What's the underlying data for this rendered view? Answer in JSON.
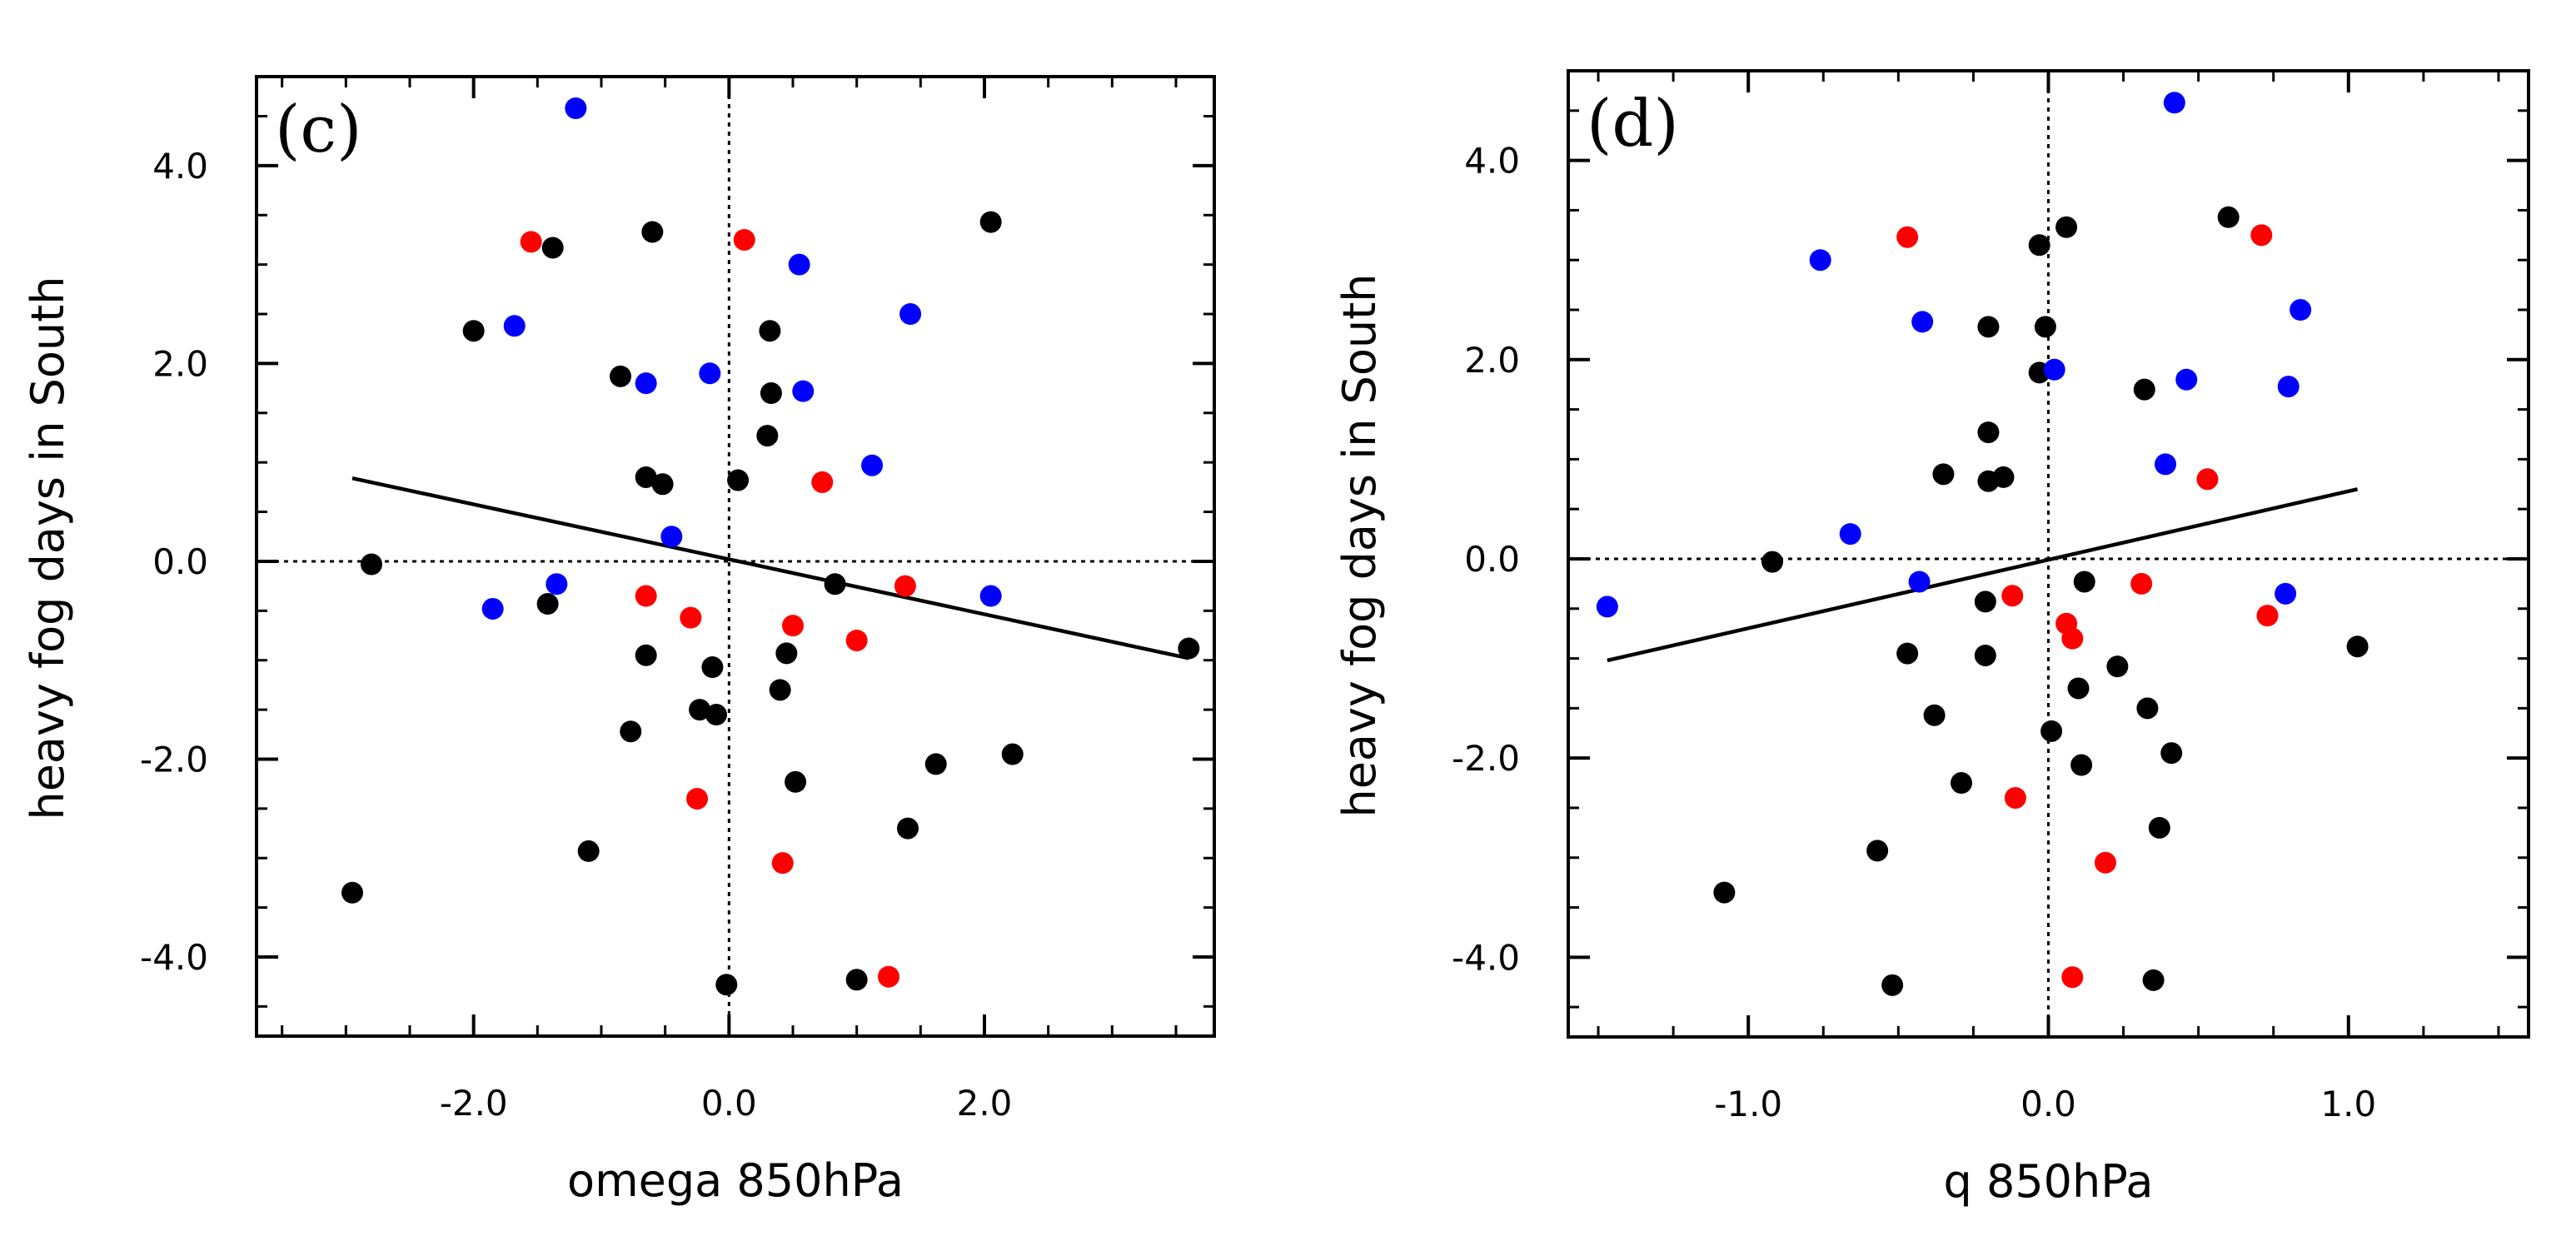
{
  "chart_data": [
    {
      "type": "scatter",
      "panel_label": "(c)",
      "xlabel": "omega 850hPa",
      "ylabel": "heavy fog days in South",
      "xlim": [
        -3.7,
        3.8
      ],
      "ylim": [
        -4.8,
        4.9
      ],
      "xticks": [
        -2.0,
        0.0,
        2.0
      ],
      "xtick_labels": [
        "-2.0",
        "0.0",
        "2.0"
      ],
      "yticks": [
        -4.0,
        -2.0,
        0.0,
        2.0,
        4.0
      ],
      "ytick_labels": [
        "-4.0",
        "-2.0",
        "0.0",
        "2.0",
        "4.0"
      ],
      "reference_lines": {
        "x": 0,
        "y": 0
      },
      "regression_line": {
        "x": [
          -2.95,
          3.6
        ],
        "y": [
          0.84,
          -0.98
        ]
      },
      "series": [
        {
          "name": "black",
          "color": "#000000",
          "points": [
            [
              -1.38,
              3.17
            ],
            [
              -0.6,
              3.33
            ],
            [
              2.05,
              3.43
            ],
            [
              -2.0,
              2.33
            ],
            [
              0.32,
              2.33
            ],
            [
              -0.85,
              1.87
            ],
            [
              0.33,
              1.7
            ],
            [
              0.3,
              1.27
            ],
            [
              -0.65,
              0.85
            ],
            [
              -0.52,
              0.78
            ],
            [
              0.07,
              0.82
            ],
            [
              -2.8,
              -0.03
            ],
            [
              0.83,
              -0.23
            ],
            [
              -1.42,
              -0.43
            ],
            [
              -0.65,
              -0.95
            ],
            [
              0.45,
              -0.93
            ],
            [
              -0.13,
              -1.07
            ],
            [
              0.4,
              -1.3
            ],
            [
              -0.23,
              -1.5
            ],
            [
              -0.1,
              -1.55
            ],
            [
              -0.77,
              -1.72
            ],
            [
              1.62,
              -2.05
            ],
            [
              2.22,
              -1.95
            ],
            [
              0.52,
              -2.23
            ],
            [
              1.4,
              -2.7
            ],
            [
              -1.1,
              -2.93
            ],
            [
              -2.95,
              -3.35
            ],
            [
              -0.02,
              -4.28
            ],
            [
              1.0,
              -4.23
            ],
            [
              3.6,
              -0.88
            ]
          ]
        },
        {
          "name": "blue",
          "color": "#0000ff",
          "points": [
            [
              -1.2,
              4.58
            ],
            [
              0.55,
              3.0
            ],
            [
              1.42,
              2.5
            ],
            [
              -1.68,
              2.38
            ],
            [
              -0.65,
              1.8
            ],
            [
              -0.15,
              1.9
            ],
            [
              0.58,
              1.72
            ],
            [
              1.12,
              0.97
            ],
            [
              -0.45,
              0.25
            ],
            [
              -1.35,
              -0.23
            ],
            [
              -1.85,
              -0.48
            ],
            [
              2.05,
              -0.35
            ]
          ]
        },
        {
          "name": "red",
          "color": "#ff0000",
          "points": [
            [
              -1.55,
              3.23
            ],
            [
              0.12,
              3.25
            ],
            [
              0.73,
              0.8
            ],
            [
              1.38,
              -0.25
            ],
            [
              -0.65,
              -0.35
            ],
            [
              -0.3,
              -0.57
            ],
            [
              0.5,
              -0.65
            ],
            [
              1.0,
              -0.8
            ],
            [
              -0.25,
              -2.4
            ],
            [
              0.42,
              -3.05
            ],
            [
              1.25,
              -4.2
            ]
          ]
        }
      ]
    },
    {
      "type": "scatter",
      "panel_label": "(d)",
      "xlabel": "q 850hPa",
      "ylabel": "heavy fog days in South",
      "xlim": [
        -1.6,
        1.6
      ],
      "ylim": [
        -4.8,
        4.9
      ],
      "xticks": [
        -1.0,
        0.0,
        1.0
      ],
      "xtick_labels": [
        "-1.0",
        "0.0",
        "1.0"
      ],
      "yticks": [
        -4.0,
        -2.0,
        0.0,
        2.0,
        4.0
      ],
      "ytick_labels": [
        "-4.0",
        "-2.0",
        "0.0",
        "2.0",
        "4.0"
      ],
      "reference_lines": {
        "x": 0,
        "y": 0
      },
      "regression_line": {
        "x": [
          -1.47,
          1.03
        ],
        "y": [
          -1.02,
          0.7
        ]
      },
      "series": [
        {
          "name": "black",
          "color": "#000000",
          "points": [
            [
              -0.03,
              3.15
            ],
            [
              0.06,
              3.33
            ],
            [
              0.6,
              3.43
            ],
            [
              -0.2,
              2.33
            ],
            [
              -0.01,
              2.33
            ],
            [
              -0.03,
              1.87
            ],
            [
              0.32,
              1.7
            ],
            [
              -0.2,
              1.27
            ],
            [
              -0.35,
              0.85
            ],
            [
              -0.2,
              0.78
            ],
            [
              -0.15,
              0.82
            ],
            [
              -0.92,
              -0.03
            ],
            [
              0.12,
              -0.23
            ],
            [
              -0.21,
              -0.43
            ],
            [
              -0.21,
              -0.97
            ],
            [
              -0.47,
              -0.95
            ],
            [
              0.23,
              -1.08
            ],
            [
              0.1,
              -1.3
            ],
            [
              0.33,
              -1.5
            ],
            [
              -0.38,
              -1.57
            ],
            [
              0.01,
              -1.73
            ],
            [
              0.11,
              -2.07
            ],
            [
              0.41,
              -1.95
            ],
            [
              -0.29,
              -2.25
            ],
            [
              0.37,
              -2.7
            ],
            [
              -0.57,
              -2.93
            ],
            [
              -1.08,
              -3.35
            ],
            [
              -0.52,
              -4.28
            ],
            [
              0.35,
              -4.23
            ],
            [
              1.03,
              -0.88
            ]
          ]
        },
        {
          "name": "blue",
          "color": "#0000ff",
          "points": [
            [
              0.42,
              4.58
            ],
            [
              -0.76,
              3.0
            ],
            [
              0.84,
              2.5
            ],
            [
              -0.42,
              2.38
            ],
            [
              0.02,
              1.9
            ],
            [
              0.46,
              1.8
            ],
            [
              0.8,
              1.73
            ],
            [
              0.39,
              0.95
            ],
            [
              -0.66,
              0.25
            ],
            [
              -0.43,
              -0.23
            ],
            [
              -1.47,
              -0.48
            ],
            [
              0.79,
              -0.35
            ]
          ]
        },
        {
          "name": "red",
          "color": "#ff0000",
          "points": [
            [
              -0.47,
              3.23
            ],
            [
              0.71,
              3.25
            ],
            [
              0.53,
              0.8
            ],
            [
              0.31,
              -0.25
            ],
            [
              -0.12,
              -0.37
            ],
            [
              0.73,
              -0.57
            ],
            [
              0.06,
              -0.65
            ],
            [
              0.08,
              -0.8
            ],
            [
              -0.11,
              -2.4
            ],
            [
              0.19,
              -3.05
            ],
            [
              0.08,
              -4.2
            ]
          ]
        }
      ]
    }
  ]
}
